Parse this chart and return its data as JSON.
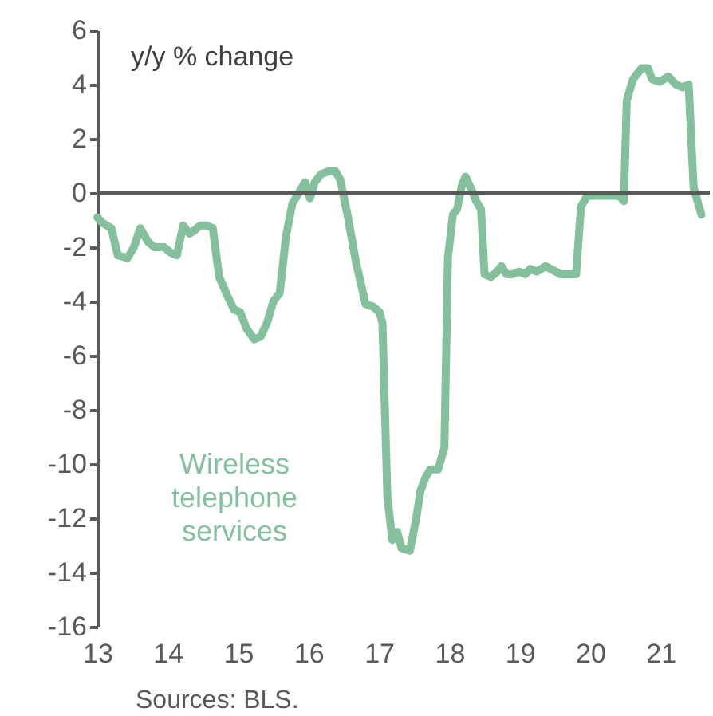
{
  "chart_data": {
    "type": "line",
    "ylabel": "y/y % change",
    "annotations": [
      "Sources: BLS."
    ],
    "xlim": [
      13,
      21.7
    ],
    "xticks": [
      13,
      14,
      15,
      16,
      17,
      18,
      19,
      20,
      21
    ],
    "ylim": [
      -16,
      6
    ],
    "yticks": [
      -16,
      -14,
      -12,
      -10,
      -8,
      -6,
      -4,
      -2,
      0,
      2,
      4,
      6
    ],
    "ref_lines": [
      {
        "axis": "y",
        "value": 0,
        "color": "#595959"
      }
    ],
    "series": [
      {
        "name": "Wireless telephone services",
        "color": "#84c09c",
        "x": [
          13.0,
          13.07,
          13.2,
          13.29,
          13.43,
          13.52,
          13.61,
          13.72,
          13.81,
          13.95,
          14.04,
          14.13,
          14.22,
          14.31,
          14.37,
          14.46,
          14.55,
          14.64,
          14.73,
          14.85,
          14.94,
          15.03,
          15.12,
          15.23,
          15.32,
          15.41,
          15.5,
          15.59,
          15.68,
          15.77,
          15.86,
          15.95,
          16.02,
          16.09,
          16.18,
          16.29,
          16.38,
          16.45,
          16.56,
          16.67,
          16.74,
          16.81,
          16.92,
          17.01,
          17.05,
          17.12,
          17.19,
          17.26,
          17.32,
          17.44,
          17.53,
          17.59,
          17.66,
          17.73,
          17.84,
          17.93,
          17.98,
          18.05,
          18.11,
          18.18,
          18.23,
          18.32,
          18.38,
          18.45,
          18.5,
          18.59,
          18.68,
          18.74,
          18.81,
          18.9,
          18.99,
          19.08,
          19.15,
          19.24,
          19.37,
          19.58,
          19.8,
          19.87,
          19.96,
          20.18,
          20.41,
          20.48,
          20.52,
          20.61,
          20.73,
          20.82,
          20.88,
          20.99,
          21.11,
          21.22,
          21.31,
          21.4,
          21.47,
          21.58
        ],
        "values": [
          -0.9,
          -1.1,
          -1.3,
          -2.3,
          -2.4,
          -2.0,
          -1.3,
          -1.8,
          -2.0,
          -2.0,
          -2.2,
          -2.3,
          -1.2,
          -1.5,
          -1.4,
          -1.2,
          -1.2,
          -1.3,
          -3.1,
          -3.8,
          -4.3,
          -4.4,
          -5.0,
          -5.4,
          -5.3,
          -4.8,
          -4.0,
          -3.7,
          -1.6,
          -0.4,
          0.0,
          0.4,
          -0.2,
          0.4,
          0.7,
          0.8,
          0.8,
          0.5,
          -0.9,
          -2.5,
          -3.3,
          -4.1,
          -4.2,
          -4.4,
          -4.8,
          -11.2,
          -12.8,
          -12.5,
          -13.1,
          -13.2,
          -12.0,
          -11.0,
          -10.5,
          -10.2,
          -10.2,
          -9.4,
          -2.4,
          -0.8,
          -0.6,
          0.3,
          0.6,
          0.1,
          -0.3,
          -0.6,
          -3.0,
          -3.1,
          -2.9,
          -2.7,
          -3.0,
          -3.0,
          -2.9,
          -3.0,
          -2.8,
          -2.9,
          -2.7,
          -3.0,
          -3.0,
          -0.5,
          -0.1,
          -0.1,
          -0.1,
          -0.3,
          3.4,
          4.2,
          4.6,
          4.6,
          4.2,
          4.1,
          4.3,
          4.0,
          3.9,
          4.0,
          0.2,
          -0.8
        ]
      }
    ]
  }
}
